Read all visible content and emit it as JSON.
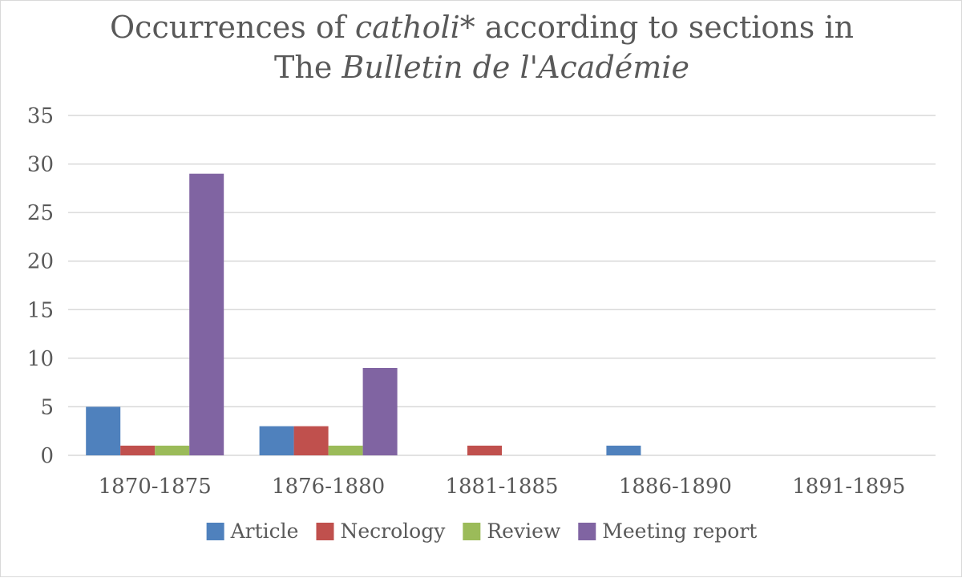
{
  "chart_data": {
    "type": "bar",
    "title_parts": [
      {
        "text": "Occurrences of ",
        "italic": false
      },
      {
        "text": "catholi*",
        "italic": true
      },
      {
        "text": " according to sections in",
        "italic": false
      },
      {
        "break": true
      },
      {
        "text": "The ",
        "italic": false
      },
      {
        "text": "Bulletin de l'Académie",
        "italic": true
      }
    ],
    "categories": [
      "1870-1875",
      "1876-1880",
      "1881-1885",
      "1886-1890",
      "1891-1895"
    ],
    "series": [
      {
        "name": "Article",
        "color": "#4f81bd",
        "values": [
          5,
          3,
          0,
          1,
          0
        ]
      },
      {
        "name": "Necrology",
        "color": "#c0504d",
        "values": [
          1,
          3,
          1,
          0,
          0
        ]
      },
      {
        "name": "Review",
        "color": "#9bbb59",
        "values": [
          1,
          1,
          0,
          0,
          0
        ]
      },
      {
        "name": "Meeting report",
        "color": "#8064a2",
        "values": [
          29,
          9,
          0,
          0,
          0
        ]
      }
    ],
    "ylim": [
      0,
      35
    ],
    "yticks": [
      0,
      5,
      10,
      15,
      20,
      25,
      30,
      35
    ],
    "xlabel": "",
    "ylabel": "",
    "grid": true,
    "legend": "bottom"
  }
}
